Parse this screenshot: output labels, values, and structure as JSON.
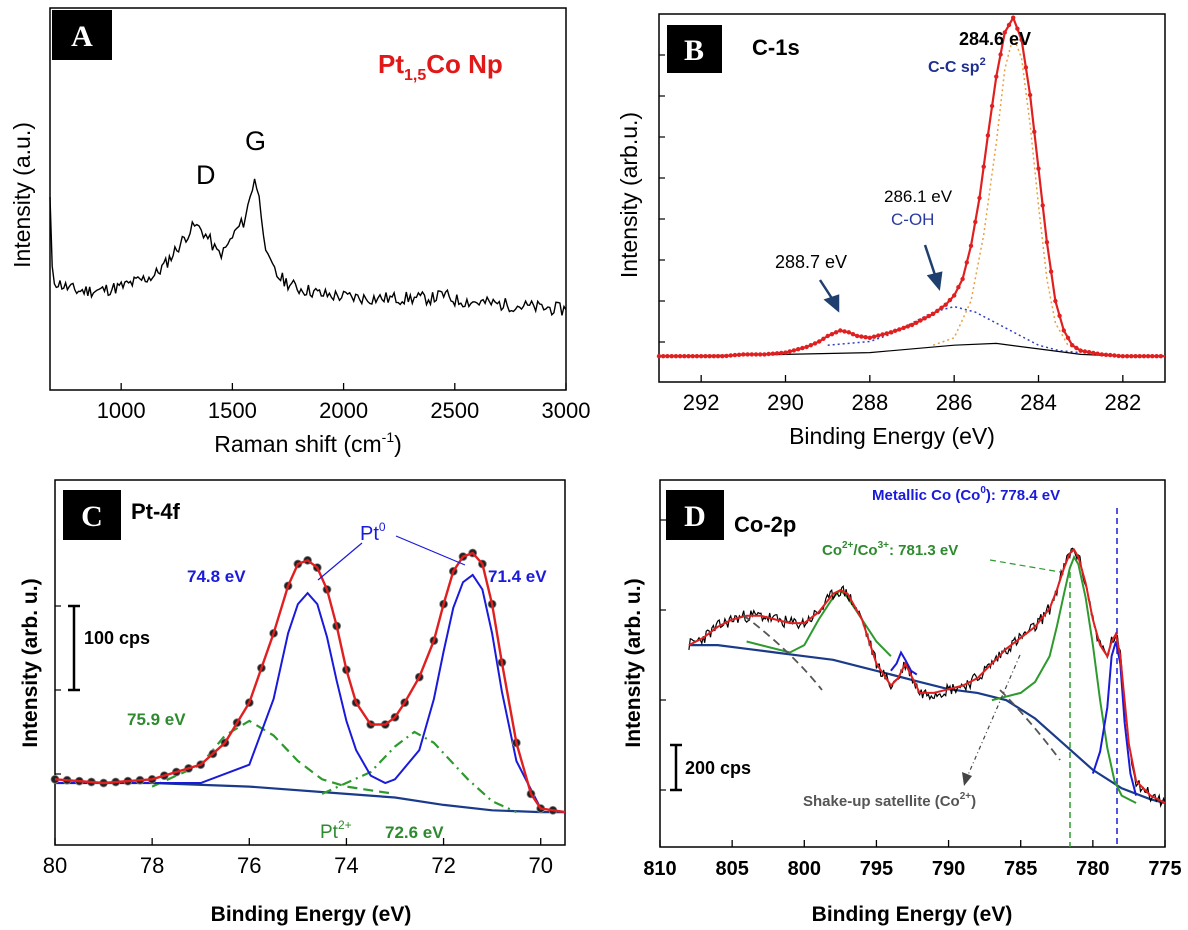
{
  "chart_data": [
    {
      "type": "line",
      "panel_label": "A",
      "title": "Pt₁,₅Co Np",
      "title_main": "Pt",
      "title_sub": "1,5",
      "title_tail": "Co Np",
      "xlabel": "Raman shift (cm",
      "xlabel_sup": "-1",
      "xlabel_tail": ")",
      "ylabel": "Intensity (a.u.)",
      "xlim": [
        680,
        3000
      ],
      "ylim": [
        0,
        1
      ],
      "xticks": [
        1000,
        1500,
        2000,
        2500,
        3000
      ],
      "annotations": [
        {
          "text": "D",
          "x": 1330,
          "y": 0.62
        },
        {
          "text": "G",
          "x": 1600,
          "y": 0.74
        }
      ],
      "series": [
        {
          "color": "#000000",
          "x": [
            680,
            690,
            700,
            750,
            800,
            850,
            900,
            950,
            1000,
            1050,
            1100,
            1150,
            1200,
            1250,
            1300,
            1330,
            1360,
            1400,
            1430,
            1460,
            1490,
            1520,
            1550,
            1570,
            1590,
            1600,
            1620,
            1640,
            1660,
            1700,
            1750,
            1800,
            1850,
            1900,
            2000,
            2100,
            2200,
            2300,
            2400,
            2450,
            2500,
            2600,
            2700,
            2800,
            2900,
            3000
          ],
          "y": [
            0.5,
            0.31,
            0.285,
            0.27,
            0.26,
            0.26,
            0.26,
            0.265,
            0.27,
            0.28,
            0.29,
            0.3,
            0.33,
            0.37,
            0.41,
            0.43,
            0.42,
            0.39,
            0.36,
            0.36,
            0.39,
            0.42,
            0.44,
            0.48,
            0.53,
            0.56,
            0.5,
            0.42,
            0.34,
            0.3,
            0.28,
            0.265,
            0.26,
            0.25,
            0.245,
            0.24,
            0.24,
            0.24,
            0.24,
            0.25,
            0.235,
            0.23,
            0.225,
            0.22,
            0.215,
            0.21
          ]
        }
      ]
    },
    {
      "type": "line",
      "panel_label": "B",
      "title": "C-1s",
      "xlabel": "Binding Energy (eV)",
      "ylabel": "Intensity (arb.u.)",
      "xlim": [
        293,
        281
      ],
      "ylim": [
        0,
        1
      ],
      "xticks": [
        292,
        290,
        288,
        286,
        284,
        282
      ],
      "annotations": [
        {
          "text": "284.6 eV",
          "x": 284.6
        },
        {
          "text": "C-C sp",
          "sup": "2",
          "x": 284.6
        },
        {
          "text": "286.1 eV",
          "x": 286.1
        },
        {
          "text": "C-OH",
          "x": 286.1
        },
        {
          "text": "288.7 eV",
          "x": 288.7
        }
      ],
      "series": [
        {
          "name": "",
          "color": "#e02020",
          "x": [
            293,
            292.5,
            292,
            291.5,
            291,
            290.5,
            290,
            289.5,
            289.2,
            289,
            288.8,
            288.7,
            288.5,
            288.3,
            288,
            287.5,
            287,
            286.5,
            286.2,
            286,
            285.8,
            285.6,
            285.4,
            285.2,
            285,
            284.8,
            284.6,
            284.4,
            284.2,
            284,
            283.8,
            283.6,
            283.4,
            283.2,
            283,
            282.5,
            282,
            281.5,
            281
          ],
          "y": [
            0.07,
            0.07,
            0.07,
            0.07,
            0.075,
            0.075,
            0.08,
            0.095,
            0.11,
            0.125,
            0.135,
            0.14,
            0.135,
            0.125,
            0.12,
            0.135,
            0.155,
            0.185,
            0.21,
            0.235,
            0.28,
            0.37,
            0.5,
            0.67,
            0.83,
            0.95,
            0.99,
            0.93,
            0.78,
            0.58,
            0.38,
            0.22,
            0.14,
            0.1,
            0.085,
            0.075,
            0.07,
            0.07,
            0.07
          ]
        },
        {
          "name": "",
          "color": "#e8a040",
          "x": [
            286.5,
            286,
            285.6,
            285.3,
            285,
            284.8,
            284.6,
            284.4,
            284.2,
            284,
            283.8,
            283.6,
            283.3,
            283
          ],
          "y": [
            0.1,
            0.12,
            0.22,
            0.4,
            0.65,
            0.85,
            0.94,
            0.88,
            0.7,
            0.48,
            0.28,
            0.16,
            0.1,
            0.09
          ]
        },
        {
          "name": "",
          "color": "#3040c0",
          "x": [
            289,
            288,
            287.5,
            287,
            286.5,
            286,
            285.5,
            285,
            284.5,
            284,
            283.5,
            283
          ],
          "y": [
            0.1,
            0.11,
            0.13,
            0.16,
            0.19,
            0.205,
            0.19,
            0.16,
            0.13,
            0.1,
            0.085,
            0.08
          ]
        },
        {
          "name": "",
          "color": "#000000",
          "x": [
            293,
            290,
            288,
            286,
            285,
            284,
            283,
            282,
            281
          ],
          "y": [
            0.07,
            0.075,
            0.08,
            0.1,
            0.105,
            0.09,
            0.075,
            0.07,
            0.07
          ]
        }
      ]
    },
    {
      "type": "line",
      "panel_label": "C",
      "title": "Pt-4f",
      "xlabel": "Binding Energy (eV)",
      "ylabel": "Intensity (arb. u.)",
      "xlim": [
        80,
        69.5
      ],
      "ylim": [
        0,
        1
      ],
      "xticks": [
        80,
        78,
        76,
        74,
        72,
        70
      ],
      "scale_bar": "100 cps",
      "annotations": [
        {
          "text": "Pt",
          "sup": "0",
          "x": 73.2
        },
        {
          "text": "74.8 eV",
          "x": 74.8
        },
        {
          "text": "71.4 eV",
          "x": 71.4
        },
        {
          "text": "75.9 eV",
          "x": 75.9
        },
        {
          "text": "Pt",
          "sup": "2+",
          "x": 73.8
        },
        {
          "text": "72.6 eV",
          "x": 72.6
        }
      ],
      "series": [
        {
          "name": "",
          "color": "#e02020",
          "x": [
            80,
            79,
            78,
            77,
            76.5,
            76,
            75.5,
            75.2,
            75,
            74.8,
            74.6,
            74.4,
            74.2,
            74,
            73.8,
            73.5,
            73.2,
            73,
            72.8,
            72.5,
            72.2,
            72,
            71.8,
            71.6,
            71.4,
            71.2,
            71,
            70.8,
            70.5,
            70.2,
            70,
            69.5
          ],
          "y": [
            0.18,
            0.17,
            0.18,
            0.22,
            0.28,
            0.39,
            0.58,
            0.71,
            0.77,
            0.78,
            0.76,
            0.7,
            0.6,
            0.48,
            0.39,
            0.33,
            0.33,
            0.35,
            0.39,
            0.46,
            0.56,
            0.66,
            0.75,
            0.79,
            0.8,
            0.77,
            0.66,
            0.5,
            0.28,
            0.14,
            0.1,
            0.09
          ]
        },
        {
          "name": "",
          "color": "#1a1adb",
          "x": [
            80,
            77,
            76,
            75.5,
            75.2,
            75,
            74.8,
            74.6,
            74.4,
            74.2,
            74,
            73.8,
            73.5,
            73.2,
            73,
            72.5,
            72.2,
            72,
            71.8,
            71.6,
            71.4,
            71.2,
            71,
            70.8,
            70.5,
            70,
            69.5
          ],
          "y": [
            0.17,
            0.17,
            0.22,
            0.4,
            0.58,
            0.66,
            0.69,
            0.66,
            0.57,
            0.45,
            0.34,
            0.26,
            0.19,
            0.17,
            0.18,
            0.26,
            0.4,
            0.53,
            0.65,
            0.72,
            0.74,
            0.7,
            0.58,
            0.42,
            0.23,
            0.1,
            0.09
          ]
        },
        {
          "name": "",
          "color": "#2e9a2e",
          "x": [
            78,
            77,
            76.5,
            76,
            75.5,
            75,
            74.5,
            74,
            73.5,
            73
          ],
          "y": [
            0.16,
            0.22,
            0.3,
            0.34,
            0.3,
            0.23,
            0.18,
            0.16,
            0.15,
            0.14
          ]
        },
        {
          "name": "",
          "color": "#2e9a2e",
          "x": [
            74.5,
            73.5,
            73,
            72.6,
            72.2,
            71.5,
            71,
            70.5
          ],
          "y": [
            0.14,
            0.2,
            0.27,
            0.31,
            0.28,
            0.18,
            0.12,
            0.09
          ]
        },
        {
          "name": "",
          "color": "#1a3a8a",
          "x": [
            80,
            78,
            76,
            74,
            73,
            72,
            71,
            70,
            69.5
          ],
          "y": [
            0.17,
            0.17,
            0.16,
            0.14,
            0.13,
            0.11,
            0.095,
            0.09,
            0.09
          ]
        }
      ]
    },
    {
      "type": "line",
      "panel_label": "D",
      "title": "Co-2p",
      "xlabel": "Binding Energy (eV)",
      "ylabel": "Intensity (arb. u.)",
      "xlim": [
        810,
        775
      ],
      "ylim": [
        0,
        1
      ],
      "xticks": [
        810,
        805,
        800,
        795,
        790,
        785,
        780,
        775
      ],
      "scale_bar": "200 cps",
      "annotations": [
        {
          "text": "Metallic Co (Co",
          "sup": "0",
          "tail": "): 778.4 eV",
          "x": 778.4
        },
        {
          "text": "Co",
          "sup": "2+",
          "mid": "/Co",
          "sup2": "3+",
          "tail": ": 781.3 eV",
          "x": 781.3
        },
        {
          "text": "Shake-up satellite (Co",
          "sup": "2+",
          "tail": ")",
          "x": 785
        }
      ],
      "series": [
        {
          "name": "",
          "color": "#e02020",
          "x": [
            808,
            807,
            806,
            805,
            804,
            803,
            802,
            801,
            800,
            799,
            798,
            797.5,
            797,
            796,
            795,
            794,
            793.5,
            793,
            792.5,
            792,
            791,
            790,
            789,
            788,
            787,
            786,
            785,
            784,
            783,
            782.5,
            782,
            781.6,
            781.3,
            781,
            780.5,
            780,
            779.5,
            779,
            778.7,
            778.4,
            778.1,
            777.8,
            777.5,
            777,
            776,
            775
          ],
          "y": [
            0.55,
            0.57,
            0.6,
            0.62,
            0.63,
            0.63,
            0.62,
            0.61,
            0.61,
            0.64,
            0.69,
            0.7,
            0.69,
            0.62,
            0.5,
            0.44,
            0.46,
            0.5,
            0.46,
            0.42,
            0.42,
            0.43,
            0.44,
            0.46,
            0.5,
            0.54,
            0.57,
            0.6,
            0.65,
            0.7,
            0.76,
            0.8,
            0.81,
            0.79,
            0.72,
            0.62,
            0.55,
            0.52,
            0.56,
            0.58,
            0.52,
            0.4,
            0.28,
            0.18,
            0.14,
            0.12
          ]
        },
        {
          "name": "",
          "color": "#2e9a2e",
          "x": [
            804,
            801,
            800,
            799,
            798,
            797.5,
            797,
            796,
            795,
            794
          ],
          "y": [
            0.56,
            0.53,
            0.55,
            0.62,
            0.68,
            0.7,
            0.68,
            0.62,
            0.56,
            0.52
          ],
          "x2": [
            787,
            785,
            784,
            783,
            782.5,
            782,
            781.6,
            781.3,
            781,
            780.5,
            780,
            779.5,
            779,
            778.5,
            778,
            777
          ],
          "y2": [
            0.4,
            0.42,
            0.45,
            0.52,
            0.6,
            0.69,
            0.76,
            0.79,
            0.77,
            0.68,
            0.55,
            0.4,
            0.27,
            0.18,
            0.14,
            0.12
          ]
        },
        {
          "name": "",
          "color": "#1a1adb",
          "x": [
            794,
            793.6,
            793.3,
            793,
            792.6,
            792.2
          ],
          "y": [
            0.48,
            0.5,
            0.53,
            0.51,
            0.48,
            0.47
          ],
          "x2": [
            780,
            779.5,
            779,
            778.7,
            778.4,
            778.1,
            777.8,
            777.4,
            777
          ],
          "y2": [
            0.2,
            0.26,
            0.38,
            0.52,
            0.56,
            0.5,
            0.34,
            0.2,
            0.14
          ]
        },
        {
          "name": "",
          "color": "#1a3a8a",
          "x": [
            808,
            806,
            804,
            802,
            800,
            798,
            796,
            794,
            792,
            790,
            788,
            786,
            784,
            782,
            780,
            778,
            776,
            775
          ],
          "y": [
            0.55,
            0.55,
            0.54,
            0.53,
            0.52,
            0.51,
            0.49,
            0.47,
            0.45,
            0.43,
            0.42,
            0.4,
            0.35,
            0.28,
            0.21,
            0.16,
            0.13,
            0.12
          ]
        }
      ]
    }
  ]
}
